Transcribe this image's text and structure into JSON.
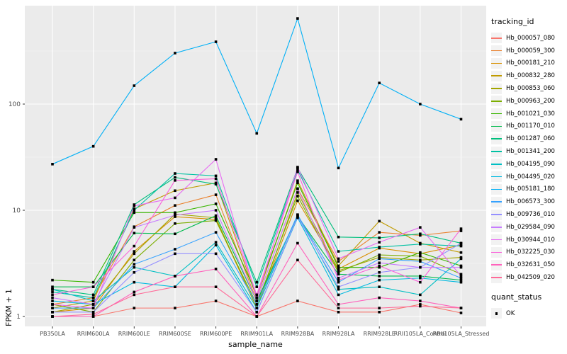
{
  "figure": {
    "y_axis_title": "FPKM + 1",
    "x_axis_title": "sample_name",
    "legend": {
      "tracking_title": "tracking_id",
      "quant_title": "quant_status",
      "quant_ok_label": "OK"
    },
    "colors": {
      "panel_bg": "#EBEBEB",
      "grid_major": "#FFFFFF",
      "grid_minor": "#F5F5F5",
      "tick_mark": "#333333",
      "tick_text": "#4D4D4D",
      "point": "#000000",
      "legend_key_bg": "#F2F2F2"
    }
  },
  "chart_data": {
    "type": "line",
    "title": "",
    "xlabel": "sample_name",
    "ylabel": "FPKM + 1",
    "y_scale": "log10",
    "ylim": [
      0.85,
      845
    ],
    "y_ticks": [
      1,
      10,
      100
    ],
    "grid": true,
    "legend_position": "right",
    "point_shape": "filled-black-square",
    "quant_status": "OK",
    "categories": [
      "PB350LA",
      "RRIM600LA",
      "RRIM600LE",
      "RRIM600SE",
      "RRIM600PE",
      "RRIM901LA",
      "RRIM928BA",
      "RRIM928LA",
      "RRIM928LE",
      "RRII105LA_Control",
      "RRII105LA_Stressed"
    ],
    "series": [
      {
        "name": "Hb_000057_080",
        "color": "#F8766D",
        "values": [
          1.0,
          1.0,
          1.2,
          1.2,
          1.4,
          1.0,
          1.4,
          1.1,
          1.1,
          1.3,
          1.08
        ]
      },
      {
        "name": "Hb_000059_300",
        "color": "#EA8331",
        "values": [
          1.3,
          1.5,
          7.0,
          11.1,
          14.0,
          1.4,
          16.0,
          3.3,
          6.2,
          5.8,
          6.4
        ]
      },
      {
        "name": "Hb_000181_210",
        "color": "#D89000",
        "values": [
          1.1,
          1.2,
          4.1,
          8.7,
          8.2,
          1.2,
          12.3,
          2.8,
          4.4,
          3.9,
          4.7
        ]
      },
      {
        "name": "Hb_000832_280",
        "color": "#C09B00",
        "values": [
          1.2,
          1.4,
          10.3,
          15.3,
          18.1,
          1.5,
          19.0,
          3.0,
          7.9,
          4.9,
          4.0
        ]
      },
      {
        "name": "Hb_000853_060",
        "color": "#A3A500",
        "values": [
          1.1,
          1.3,
          3.9,
          9.2,
          8.5,
          1.2,
          14.7,
          2.7,
          3.6,
          3.4,
          3.6
        ]
      },
      {
        "name": "Hb_000963_200",
        "color": "#7CAE00",
        "values": [
          1.3,
          1.1,
          3.4,
          7.5,
          8.0,
          1.3,
          13.6,
          2.6,
          3.8,
          3.7,
          2.5
        ]
      },
      {
        "name": "Hb_001021_030",
        "color": "#39B600",
        "values": [
          2.2,
          2.1,
          9.5,
          9.5,
          11.5,
          1.6,
          18.1,
          2.9,
          2.9,
          4.0,
          3.0
        ]
      },
      {
        "name": "Hb_001170_010",
        "color": "#00BB4E",
        "values": [
          1.9,
          1.9,
          6.1,
          6.0,
          8.9,
          1.4,
          8.8,
          2.5,
          2.4,
          2.4,
          2.2
        ]
      },
      {
        "name": "Hb_001287_060",
        "color": "#00BF7D",
        "values": [
          1.8,
          1.6,
          11.3,
          20.4,
          17.6,
          2.1,
          25.0,
          5.6,
          5.5,
          6.0,
          4.9
        ]
      },
      {
        "name": "Hb_001341_200",
        "color": "#00C1A3",
        "values": [
          1.7,
          1.5,
          10.0,
          22.2,
          21.1,
          1.9,
          24.0,
          4.1,
          4.5,
          4.8,
          4.6
        ]
      },
      {
        "name": "Hb_004195_090",
        "color": "#00BFC4",
        "values": [
          1.8,
          1.4,
          2.9,
          2.4,
          5.0,
          1.2,
          9.1,
          1.8,
          1.9,
          1.6,
          3.5
        ]
      },
      {
        "name": "Hb_004495_020",
        "color": "#00BAE0",
        "values": [
          1.4,
          1.3,
          2.1,
          1.9,
          4.7,
          1.1,
          8.5,
          1.6,
          2.2,
          2.3,
          2.1
        ]
      },
      {
        "name": "Hb_005181_180",
        "color": "#00B0F6",
        "values": [
          27.2,
          40,
          149,
          302,
          386,
          53,
          640,
          25,
          158,
          100,
          72
        ]
      },
      {
        "name": "Hb_006573_300",
        "color": "#35A2FF",
        "values": [
          1.2,
          1.2,
          3.1,
          4.3,
          6.2,
          1.3,
          9.0,
          2.1,
          3.5,
          3.3,
          2.3
        ]
      },
      {
        "name": "Hb_009736_010",
        "color": "#9590FF",
        "values": [
          1.1,
          1.1,
          2.6,
          3.9,
          3.9,
          1.1,
          8.7,
          1.9,
          2.6,
          2.9,
          4.9
        ]
      },
      {
        "name": "Hb_029584_090",
        "color": "#C77CFF",
        "values": [
          1.5,
          1.3,
          6.9,
          9.0,
          10.0,
          1.4,
          15.9,
          2.3,
          3.2,
          2.9,
          2.9
        ]
      },
      {
        "name": "Hb_030944_010",
        "color": "#E76BF3",
        "values": [
          1.3,
          1.2,
          11.0,
          13.1,
          30.2,
          1.5,
          25.5,
          3.5,
          5.0,
          6.9,
          2.4
        ]
      },
      {
        "name": "Hb_032225_030",
        "color": "#FA62DB",
        "values": [
          1.6,
          1.9,
          4.6,
          19.1,
          19.8,
          1.6,
          23.0,
          2.2,
          3.0,
          2.1,
          6.7
        ]
      },
      {
        "name": "Hb_032631_050",
        "color": "#FF62BC",
        "values": [
          1.0,
          1.0,
          1.7,
          2.4,
          2.8,
          1.0,
          4.9,
          1.3,
          1.5,
          1.4,
          1.2
        ]
      },
      {
        "name": "Hb_042509_020",
        "color": "#FF6A98",
        "values": [
          1.0,
          1.05,
          1.6,
          1.9,
          1.9,
          1.0,
          3.4,
          1.2,
          1.2,
          1.25,
          1.2
        ]
      }
    ]
  }
}
